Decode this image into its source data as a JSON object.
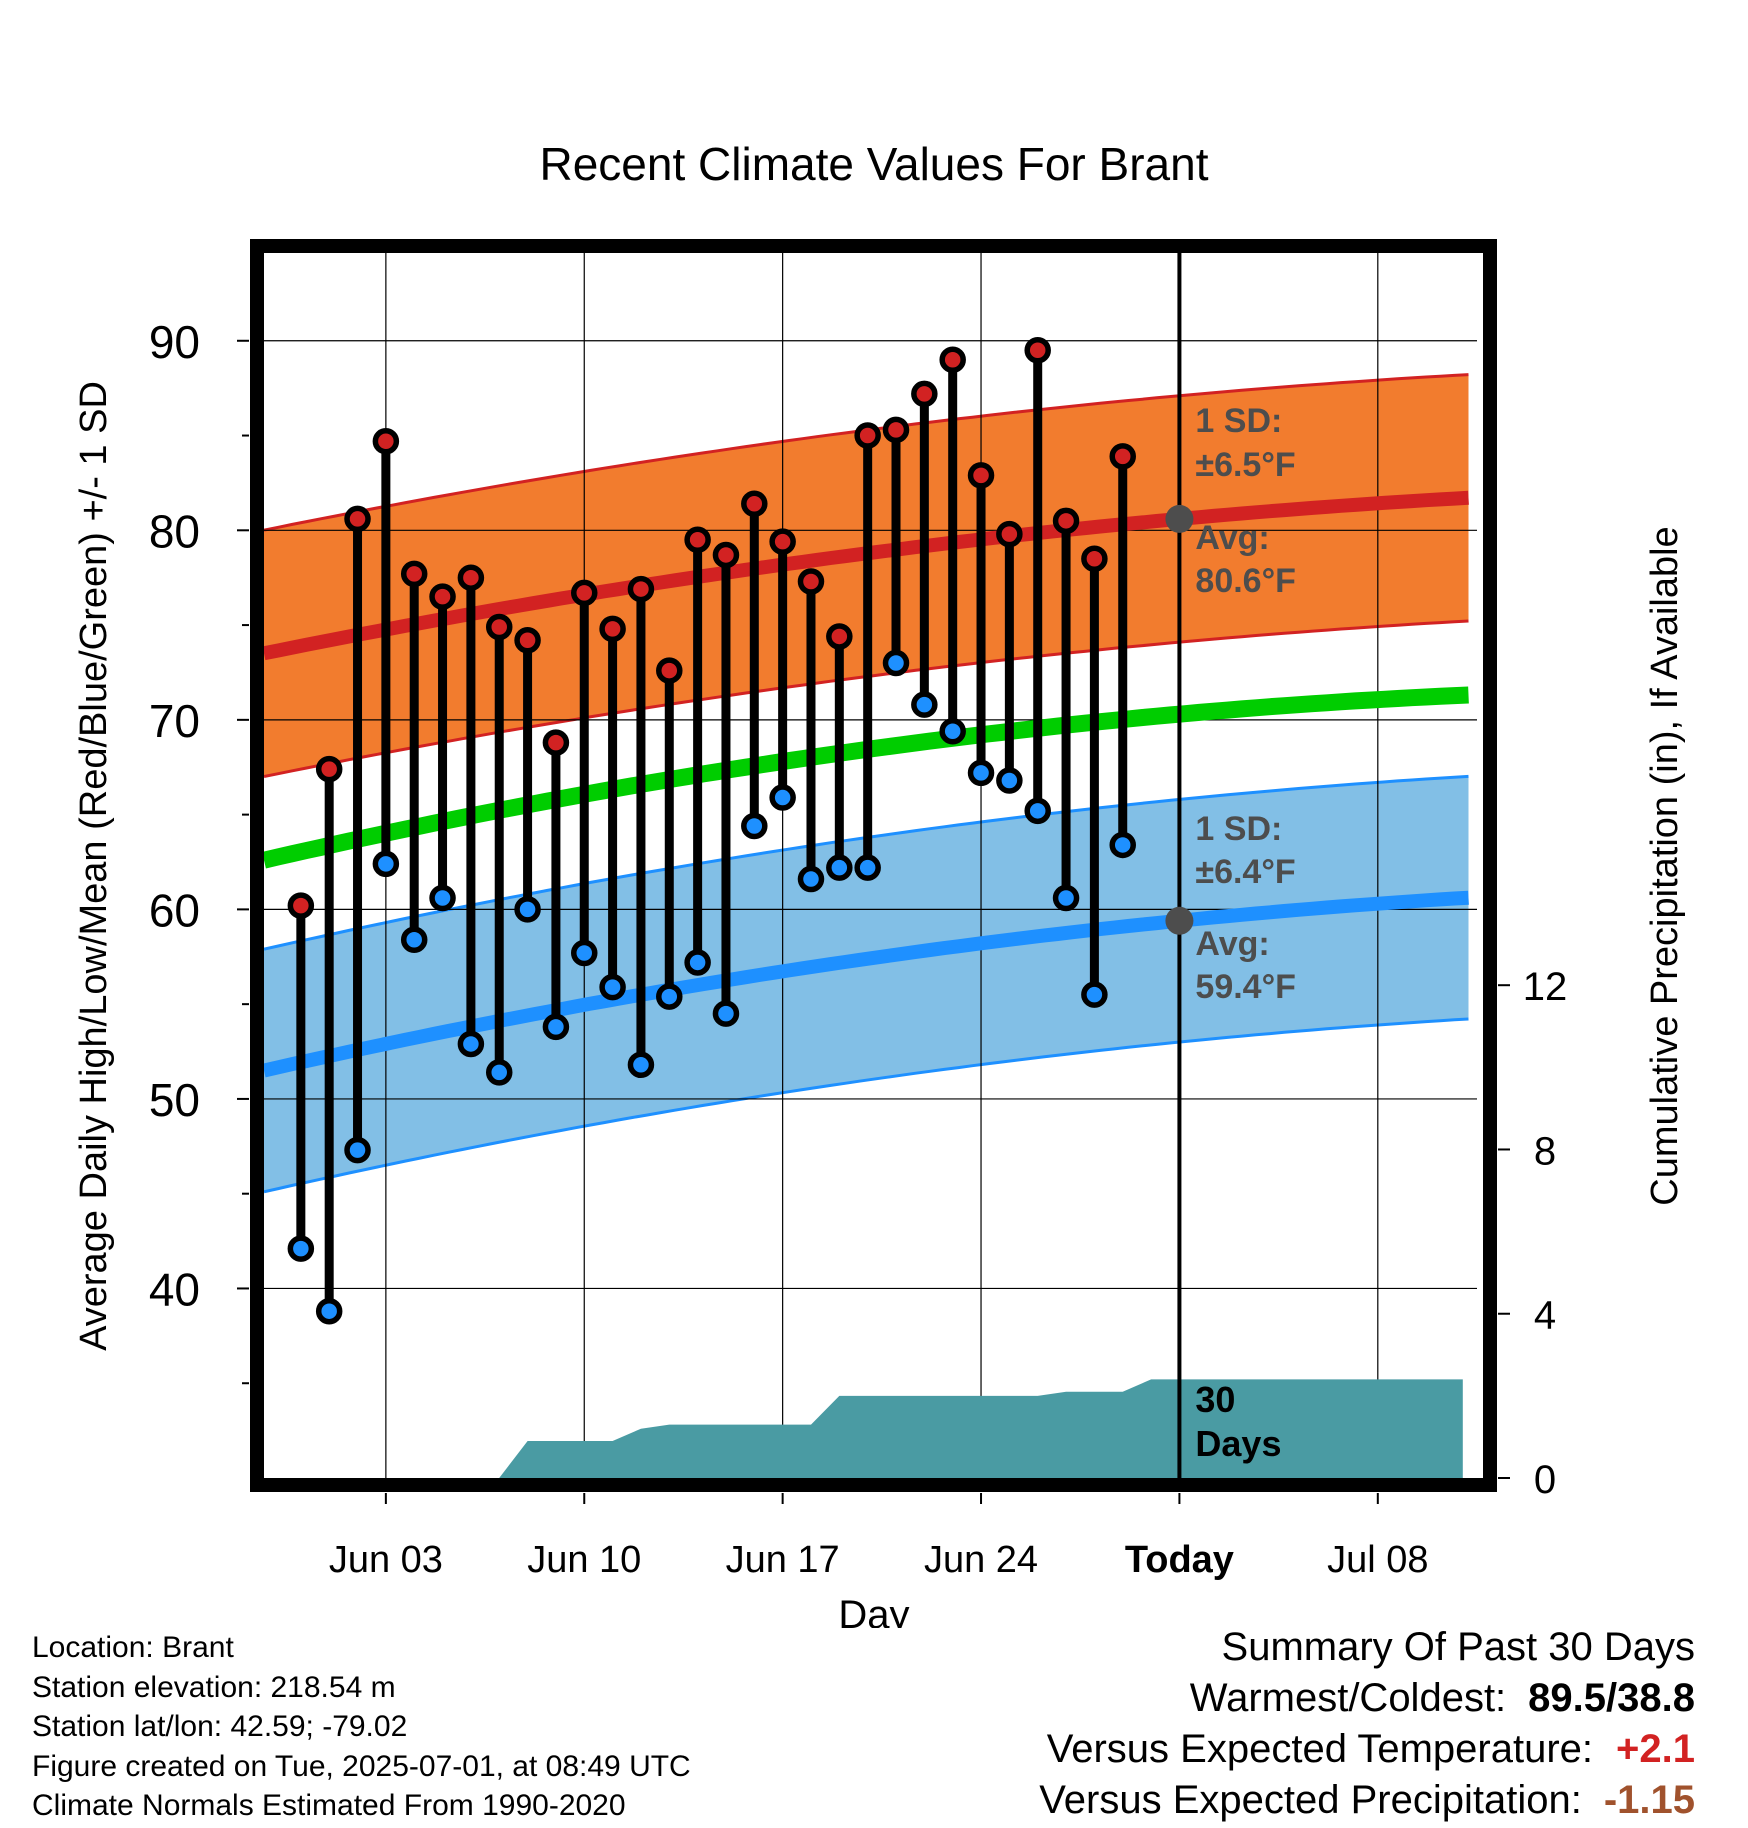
{
  "chart_data": {
    "type": "line",
    "title": "Recent Climate Values For Brant",
    "xlabel": "Day",
    "ylabel": "Average Daily High/Low/Mean (Red/Blue/Green) +/- 1 SD",
    "y2label": "Cumulative Precipitation (in), If Available",
    "ylim": [
      30,
      95
    ],
    "y2lim": [
      0,
      30
    ],
    "xlim": [
      -2.3,
      40.5
    ],
    "x_tick_labels": [
      {
        "day": 2,
        "label": "Jun 03"
      },
      {
        "day": 9,
        "label": "Jun 10"
      },
      {
        "day": 16,
        "label": "Jun 17"
      },
      {
        "day": 23,
        "label": "Jun 24"
      },
      {
        "day": 30,
        "label": "Today"
      },
      {
        "day": 37,
        "label": "Jul 08"
      }
    ],
    "y_ticks": [
      40,
      50,
      60,
      70,
      80,
      90
    ],
    "y2_ticks": [
      0,
      4,
      8,
      12
    ],
    "today_day": 30,
    "colors": {
      "high": "#d22222",
      "low": "#1e90ff",
      "mean": "#00cd00",
      "high_band": "#f27c2e",
      "low_band": "#82bfe6",
      "precip": "#4a9ba3",
      "annotation": "#4d4d4d"
    },
    "daily_observations": {
      "day": [
        -1,
        0,
        1,
        2,
        3,
        4,
        5,
        6,
        7,
        8,
        9,
        10,
        11,
        12,
        13,
        14,
        15,
        16,
        17,
        18,
        19,
        20,
        21,
        22,
        23,
        24,
        25,
        26,
        27,
        28,
        29
      ],
      "high": [
        60.2,
        67.4,
        80.6,
        84.7,
        77.7,
        76.5,
        77.5,
        74.9,
        74.2,
        68.8,
        76.7,
        74.8,
        76.9,
        72.6,
        79.5,
        78.7,
        81.4,
        79.4,
        77.3,
        74.4,
        85.0,
        85.3,
        87.2,
        89.0,
        82.9,
        79.8,
        89.5,
        80.5,
        78.5,
        83.9,
        null
      ],
      "low": [
        42.1,
        38.8,
        47.3,
        62.4,
        58.4,
        60.6,
        52.9,
        51.4,
        60.0,
        53.8,
        57.7,
        55.9,
        51.8,
        55.4,
        57.2,
        54.5,
        64.4,
        65.9,
        61.6,
        62.2,
        62.2,
        73.0,
        70.8,
        69.4,
        67.2,
        66.8,
        65.2,
        60.6,
        55.5,
        63.4,
        null
      ]
    },
    "normals": {
      "day": [
        -2,
        30,
        40
      ],
      "avg_high": [
        73.6,
        80.6,
        81.7
      ],
      "avg_high_sd": 6.5,
      "avg_low": [
        51.6,
        59.4,
        60.6
      ],
      "avg_low_sd": 6.4,
      "avg_mean": [
        62.7,
        70.3,
        71.3
      ]
    },
    "precipitation_cumulative": {
      "day": [
        6,
        7,
        10,
        11,
        12,
        14,
        15,
        16,
        17,
        18,
        25,
        26,
        28,
        29,
        40
      ],
      "value": [
        0,
        0.9,
        0.9,
        1.2,
        1.3,
        1.3,
        1.3,
        1.3,
        1.3,
        2.0,
        2.0,
        2.1,
        2.1,
        2.4,
        2.4
      ]
    },
    "annotations": {
      "high_sd_label": "1 SD:",
      "high_sd_value": "±6.5°F",
      "high_avg_label": "Avg:",
      "high_avg_value": "80.6°F",
      "low_sd_label": "1 SD:",
      "low_sd_value": "±6.4°F",
      "low_avg_label": "Avg:",
      "low_avg_value": "59.4°F",
      "days_label_1": "30",
      "days_label_2": "Days"
    }
  },
  "footer": {
    "location": "Location: Brant",
    "elevation": "Station elevation: 218.54 m",
    "latlon": "Station lat/lon: 42.59; -79.02",
    "created": "Figure created on Tue, 2025-07-01, at 08:49 UTC",
    "normals": "Climate Normals Estimated From 1990-2020"
  },
  "summary": {
    "title": "Summary Of Past 30 Days",
    "warmest_coldest_label": "Warmest/Coldest:",
    "warmest_coldest_value": "89.5/38.8",
    "temp_label": "Versus Expected Temperature:",
    "temp_value": "+2.1",
    "precip_label": "Versus Expected Precipitation:",
    "precip_value": "-1.15"
  }
}
